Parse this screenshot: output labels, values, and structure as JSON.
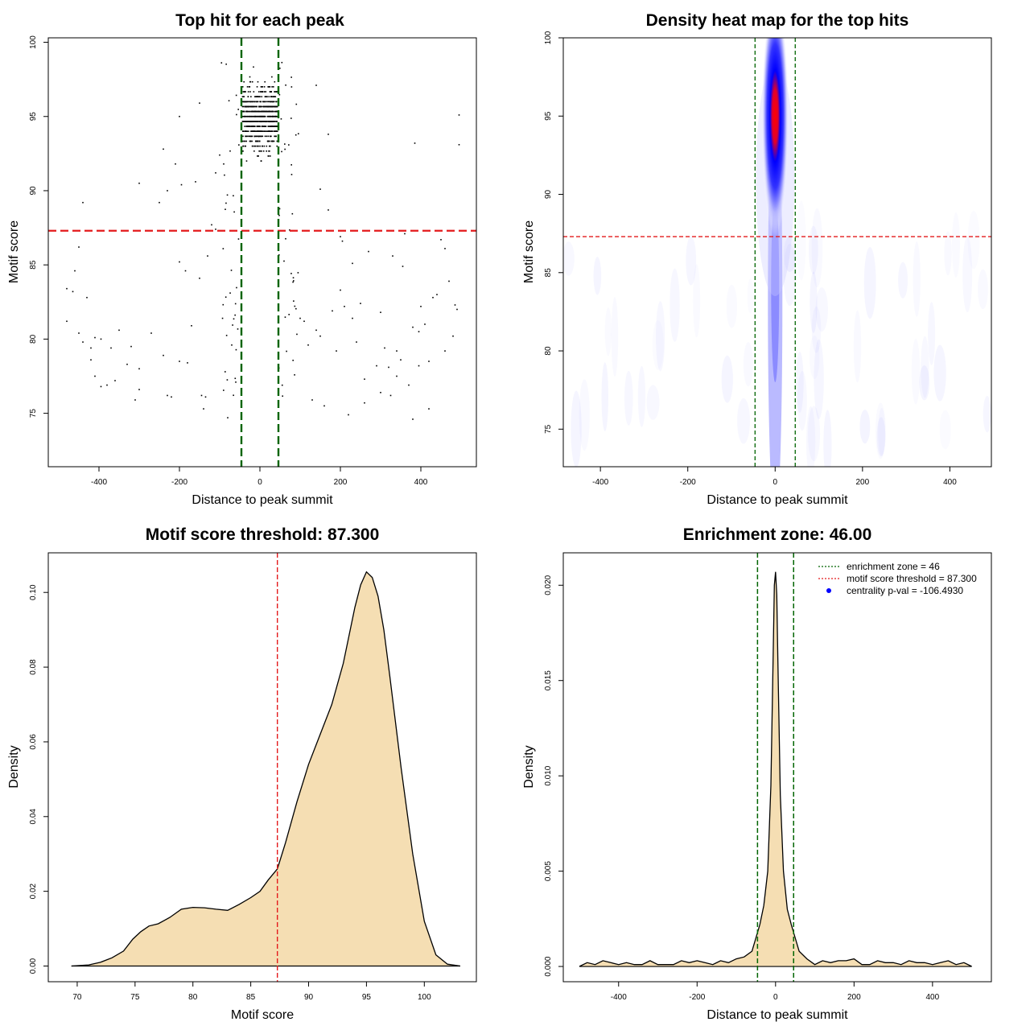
{
  "colors": {
    "enrichment_line": "#006400",
    "threshold_line": "#e41a1c",
    "points": "#000000",
    "density_fill": "#f5deb3",
    "heat_low": "#ffffff",
    "heat_mid": "#0000ff",
    "heat_high": "#ff0000",
    "legend_point": "#0000ff"
  },
  "chart_data": [
    {
      "type": "scatter",
      "title": "Top hit for each peak",
      "xlabel": "Distance to peak summit",
      "ylabel": "Motif score",
      "xlim": [
        -526,
        538
      ],
      "ylim": [
        71.4,
        100.3
      ],
      "xticks": [
        -400,
        -200,
        0,
        200,
        400
      ],
      "yticks": [
        75,
        80,
        85,
        90,
        95,
        100
      ],
      "vlines": [
        -46,
        46
      ],
      "hline": 87.3,
      "points": {
        "center_cluster": {
          "x_range": [
            -44,
            44
          ],
          "y_range": [
            72.4,
            100
          ],
          "count": 820
        },
        "flank_core": {
          "x_range": [
            -80,
            100
          ],
          "y_range": [
            75.5,
            99
          ],
          "count": 75
        },
        "background": [
          [
            -480,
            83.4
          ],
          [
            -465,
            83.2
          ],
          [
            -460,
            84.6
          ],
          [
            -450,
            86.2
          ],
          [
            -440,
            89.2
          ],
          [
            -430,
            82.8
          ],
          [
            -480,
            81.2
          ],
          [
            -450,
            80.4
          ],
          [
            -440,
            79.8
          ],
          [
            -420,
            78.6
          ],
          [
            -410,
            77.5
          ],
          [
            -395,
            76.8
          ],
          [
            -380,
            76.9
          ],
          [
            -360,
            77.2
          ],
          [
            -350,
            80.6
          ],
          [
            -330,
            78.3
          ],
          [
            -320,
            79.5
          ],
          [
            -310,
            75.9
          ],
          [
            -300,
            76.6
          ],
          [
            -300,
            90.5
          ],
          [
            -270,
            80.4
          ],
          [
            -250,
            89.2
          ],
          [
            -240,
            92.8
          ],
          [
            -240,
            78.9
          ],
          [
            -230,
            76.2
          ],
          [
            -220,
            76.1
          ],
          [
            -200,
            85.2
          ],
          [
            -200,
            78.5
          ],
          [
            -195,
            90.4
          ],
          [
            -185,
            84.6
          ],
          [
            -180,
            78.4
          ],
          [
            -170,
            80.9
          ],
          [
            -160,
            90.6
          ],
          [
            -150,
            84.1
          ],
          [
            -145,
            76.2
          ],
          [
            -140,
            75.3
          ],
          [
            -135,
            76.1
          ],
          [
            -120,
            87.7
          ],
          [
            -110,
            87.4
          ],
          [
            -110,
            91.2
          ],
          [
            -100,
            92.4
          ],
          [
            -90,
            91.8
          ],
          [
            -80,
            74.7
          ],
          [
            -70,
            79.6
          ],
          [
            -60,
            77.1
          ],
          [
            -420,
            79.4
          ],
          [
            -410,
            80.1
          ],
          [
            -395,
            80.0
          ],
          [
            -370,
            79.4
          ],
          [
            -300,
            78.0
          ],
          [
            -230,
            90.0
          ],
          [
            -210,
            91.8
          ],
          [
            -130,
            85.6
          ],
          [
            -150,
            95.9
          ],
          [
            -200,
            95.0
          ],
          [
            100,
            81.4
          ],
          [
            110,
            81.2
          ],
          [
            120,
            79.6
          ],
          [
            130,
            75.9
          ],
          [
            140,
            80.6
          ],
          [
            150,
            90.1
          ],
          [
            160,
            75.5
          ],
          [
            170,
            88.7
          ],
          [
            170,
            93.8
          ],
          [
            190,
            79.2
          ],
          [
            200,
            83.3
          ],
          [
            205,
            86.6
          ],
          [
            210,
            82.2
          ],
          [
            220,
            74.9
          ],
          [
            230,
            85.1
          ],
          [
            240,
            79.8
          ],
          [
            250,
            82.4
          ],
          [
            260,
            75.7
          ],
          [
            270,
            85.9
          ],
          [
            290,
            78.2
          ],
          [
            300,
            76.4
          ],
          [
            310,
            79.4
          ],
          [
            320,
            78.1
          ],
          [
            330,
            85.6
          ],
          [
            340,
            77.5
          ],
          [
            350,
            78.6
          ],
          [
            360,
            87.1
          ],
          [
            370,
            76.9
          ],
          [
            380,
            80.8
          ],
          [
            385,
            93.2
          ],
          [
            395,
            80.5
          ],
          [
            400,
            82.2
          ],
          [
            410,
            81.0
          ],
          [
            420,
            75.3
          ],
          [
            430,
            82.8
          ],
          [
            440,
            83.0
          ],
          [
            450,
            86.7
          ],
          [
            460,
            79.2
          ],
          [
            470,
            83.9
          ],
          [
            480,
            80.2
          ],
          [
            490,
            82.0
          ],
          [
            495,
            95.1
          ],
          [
            495,
            93.1
          ],
          [
            485,
            82.3
          ],
          [
            140,
            97.1
          ],
          [
            150,
            80.2
          ],
          [
            180,
            81.9
          ],
          [
            200,
            86.9
          ],
          [
            230,
            81.4
          ],
          [
            260,
            77.3
          ],
          [
            300,
            81.8
          ],
          [
            340,
            79.2
          ],
          [
            380,
            74.6
          ],
          [
            420,
            78.5
          ],
          [
            460,
            86.1
          ],
          [
            395,
            78.2
          ],
          [
            355,
            84.9
          ],
          [
            325,
            76.2
          ]
        ]
      }
    },
    {
      "type": "heatmap",
      "title": "Density heat map for the top hits",
      "xlabel": "Distance to peak summit",
      "ylabel": "Motif score",
      "xlim": [
        -485,
        495
      ],
      "ylim": [
        72.6,
        100
      ],
      "xticks": [
        -400,
        -200,
        0,
        200,
        400
      ],
      "yticks": [
        75,
        80,
        85,
        90,
        95,
        100
      ],
      "vlines": [
        -46,
        46
      ],
      "hline": 87.3,
      "peak": {
        "x": 0,
        "y": 95,
        "sx": 14,
        "sy": 3.2
      },
      "colorscale": [
        "white",
        "blue",
        "red"
      ]
    },
    {
      "type": "area",
      "title": "Motif score threshold: 87.300",
      "xlabel": "Motif score",
      "ylabel": "Density",
      "xlim": [
        67.5,
        104.5
      ],
      "ylim": [
        -0.0042,
        0.1106
      ],
      "xticks": [
        70,
        75,
        80,
        85,
        90,
        95,
        100
      ],
      "yticks": [
        0.0,
        0.02,
        0.04,
        0.06,
        0.08,
        0.1
      ],
      "ytick_labels": [
        "0.00",
        "0.02",
        "0.04",
        "0.06",
        "0.08",
        "0.10"
      ],
      "vline": 87.3,
      "x": [
        69.5,
        71,
        72,
        73,
        74,
        74.8,
        75.5,
        76.2,
        77,
        78,
        79,
        80,
        81,
        82,
        83,
        84,
        85,
        85.8,
        86.5,
        87.3,
        88,
        89,
        90,
        91,
        92,
        93,
        94,
        94.5,
        95,
        95.5,
        96,
        96.5,
        97,
        98,
        99,
        100,
        101,
        102,
        103.1
      ],
      "y": [
        0,
        0.0003,
        0.001,
        0.0022,
        0.004,
        0.0072,
        0.0092,
        0.0107,
        0.0113,
        0.013,
        0.0152,
        0.0157,
        0.0156,
        0.0152,
        0.0149,
        0.0165,
        0.0183,
        0.02,
        0.023,
        0.026,
        0.033,
        0.044,
        0.054,
        0.062,
        0.07,
        0.081,
        0.096,
        0.102,
        0.1055,
        0.104,
        0.099,
        0.09,
        0.078,
        0.053,
        0.03,
        0.012,
        0.003,
        0.0005,
        0
      ]
    },
    {
      "type": "area",
      "title": "Enrichment zone: 46.00",
      "xlabel": "Distance to peak summit",
      "ylabel": "Density",
      "xlim": [
        -541,
        550
      ],
      "ylim": [
        -0.0008,
        0.0217
      ],
      "xticks": [
        -400,
        -200,
        0,
        200,
        400
      ],
      "yticks": [
        0.0,
        0.005,
        0.01,
        0.015,
        0.02
      ],
      "ytick_labels": [
        "0.000",
        "0.005",
        "0.010",
        "0.015",
        "0.020"
      ],
      "vlines": [
        -46,
        46
      ],
      "x": [
        -500,
        -480,
        -460,
        -440,
        -420,
        -400,
        -380,
        -360,
        -340,
        -320,
        -300,
        -280,
        -260,
        -240,
        -220,
        -200,
        -180,
        -160,
        -140,
        -120,
        -100,
        -80,
        -60,
        -50,
        -40,
        -30,
        -20,
        -12,
        -6,
        -3,
        0,
        3,
        6,
        12,
        20,
        30,
        40,
        50,
        60,
        80,
        100,
        120,
        140,
        160,
        180,
        200,
        220,
        240,
        260,
        280,
        300,
        320,
        340,
        360,
        380,
        400,
        420,
        440,
        460,
        480,
        500
      ],
      "y": [
        0,
        0.0002,
        0.0001,
        0.0003,
        0.0002,
        0.0001,
        0.0002,
        0.0001,
        0.0001,
        0.0003,
        0.0001,
        0.0001,
        0.0001,
        0.0003,
        0.0002,
        0.0003,
        0.0002,
        0.0001,
        0.0003,
        0.0002,
        0.0004,
        0.0005,
        0.0008,
        0.0015,
        0.0022,
        0.0032,
        0.005,
        0.0095,
        0.0165,
        0.02,
        0.0207,
        0.0195,
        0.016,
        0.009,
        0.005,
        0.003,
        0.0022,
        0.0015,
        0.0008,
        0.0004,
        0.0001,
        0.0003,
        0.0002,
        0.0003,
        0.0003,
        0.0004,
        0.0001,
        0.0001,
        0.0003,
        0.0002,
        0.0002,
        0.0001,
        0.0003,
        0.0002,
        0.0002,
        0.0001,
        0.0002,
        0.0003,
        0.0001,
        0.0002,
        0
      ]
    }
  ],
  "legend": [
    {
      "type": "dotted-line",
      "color": "#006400",
      "label": "enrichment zone = 46"
    },
    {
      "type": "dotted-line",
      "color": "#e41a1c",
      "label": "motif score threshold = 87.300"
    },
    {
      "type": "point",
      "color": "#0000ff",
      "label": "centrality p-val = -106.4930"
    }
  ]
}
